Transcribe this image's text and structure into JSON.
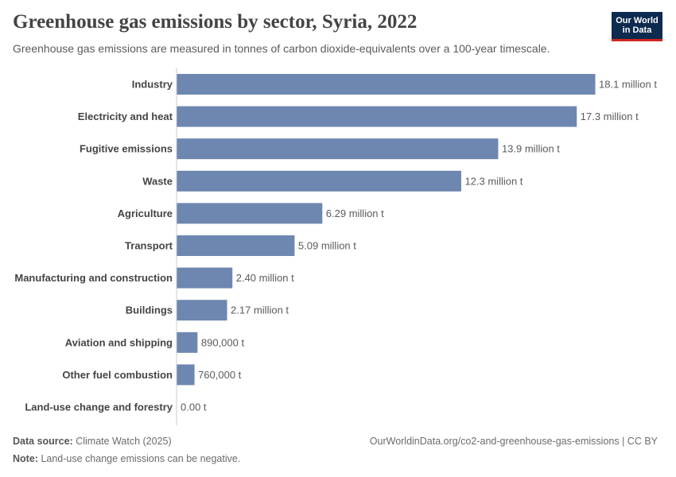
{
  "header": {
    "title": "Greenhouse gas emissions by sector, Syria, 2022",
    "subtitle": "Greenhouse gas emissions are measured in tonnes of carbon dioxide-equivalents over a 100-year timescale."
  },
  "logo": {
    "line1": "Our World",
    "line2": "in Data"
  },
  "colors": {
    "bar": "#6d87b0",
    "axis": "#cccccc",
    "label": "#444444",
    "value_label": "#5b5b5b",
    "logo_bg": "#0d2a4f",
    "logo_accent": "#ce261e"
  },
  "chart_data": {
    "type": "bar",
    "orientation": "horizontal",
    "categories": [
      "Industry",
      "Electricity and heat",
      "Fugitive emissions",
      "Waste",
      "Agriculture",
      "Transport",
      "Manufacturing and construction",
      "Buildings",
      "Aviation and shipping",
      "Other fuel combustion",
      "Land-use change and forestry"
    ],
    "values": [
      18100000,
      17300000,
      13900000,
      12300000,
      6290000,
      5090000,
      2400000,
      2170000,
      890000,
      760000,
      0
    ],
    "value_labels": [
      "18.1 million t",
      "17.3 million t",
      "13.9 million t",
      "12.3 million t",
      "6.29 million t",
      "5.09 million t",
      "2.40 million t",
      "2.17 million t",
      "890,000 t",
      "760,000 t",
      "0.00 t"
    ],
    "unit": "t",
    "xlim": [
      0,
      18100000
    ]
  },
  "footer": {
    "source_label": "Data source:",
    "source_text": "Climate Watch (2025)",
    "url_text": "OurWorldinData.org/co2-and-greenhouse-gas-emissions | CC BY",
    "note_label": "Note:",
    "note_text": "Land-use change emissions can be negative."
  }
}
